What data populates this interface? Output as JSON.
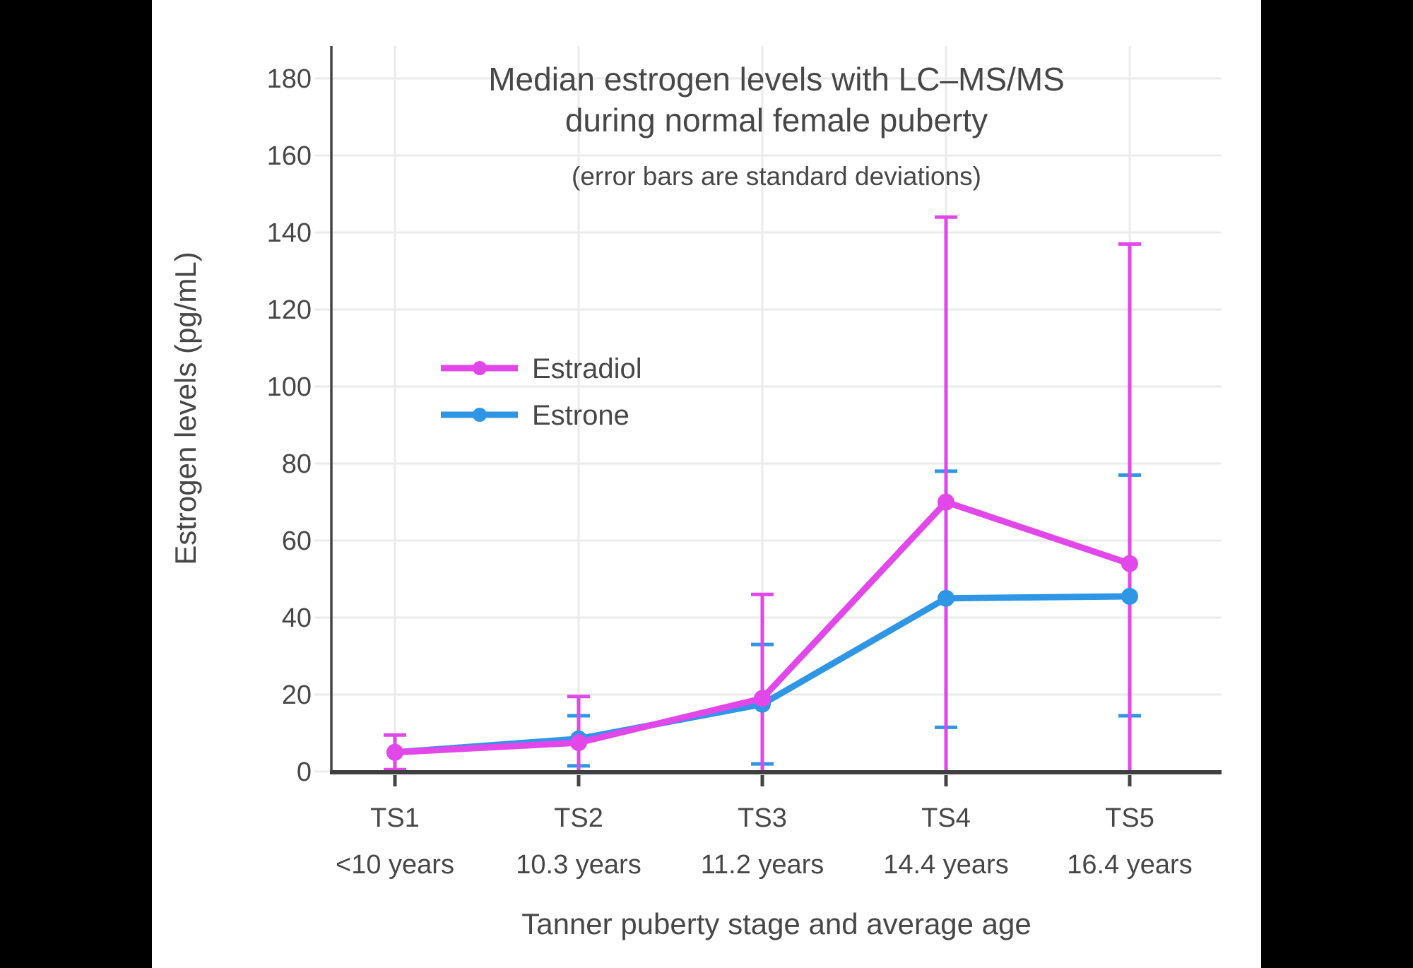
{
  "page": {
    "background": "#000000",
    "canvas_background": "#ffffff",
    "text_color": "#474747"
  },
  "chart_data": {
    "type": "line",
    "title": "Median estrogen levels with LC–MS/MS during normal female puberty",
    "title_lines": [
      "Median estrogen levels with LC–MS/MS",
      "during normal female puberty"
    ],
    "subtitle": "(error bars are standard deviations)",
    "xlabel": "Tanner puberty stage and average age",
    "ylabel": "Estrogen levels (pg/mL)",
    "categories": [
      "TS1",
      "TS2",
      "TS3",
      "TS4",
      "TS5"
    ],
    "category_sublabels": [
      "<10 years",
      "10.3 years",
      "11.2 years",
      "14.4 years",
      "16.4 years"
    ],
    "yticks": [
      0,
      20,
      40,
      60,
      80,
      100,
      120,
      140,
      160,
      180
    ],
    "ylim": [
      0,
      188
    ],
    "grid": true,
    "legend_position": "inside-middle-left",
    "error_bar_meaning": "standard deviations",
    "series": [
      {
        "name": "Estradiol",
        "color": "#E247EA",
        "values": [
          5,
          7.5,
          19,
          70,
          54
        ],
        "error_upper": [
          9.5,
          19.5,
          46,
          144,
          137
        ],
        "error_lower": [
          0.5,
          0,
          0,
          0,
          0
        ],
        "error_lower_clipped": [
          false,
          true,
          true,
          true,
          true
        ]
      },
      {
        "name": "Estrone",
        "color": "#2E96E5",
        "values": [
          5,
          8.5,
          17.5,
          45,
          45.5
        ],
        "error_upper": [
          null,
          14.5,
          33,
          78,
          77
        ],
        "error_lower": [
          null,
          1.5,
          2,
          11.5,
          14.5
        ],
        "error_lower_clipped": [
          false,
          false,
          false,
          false,
          false
        ]
      }
    ],
    "grid_color": "#ebebeb",
    "axis_color": "#444444"
  }
}
